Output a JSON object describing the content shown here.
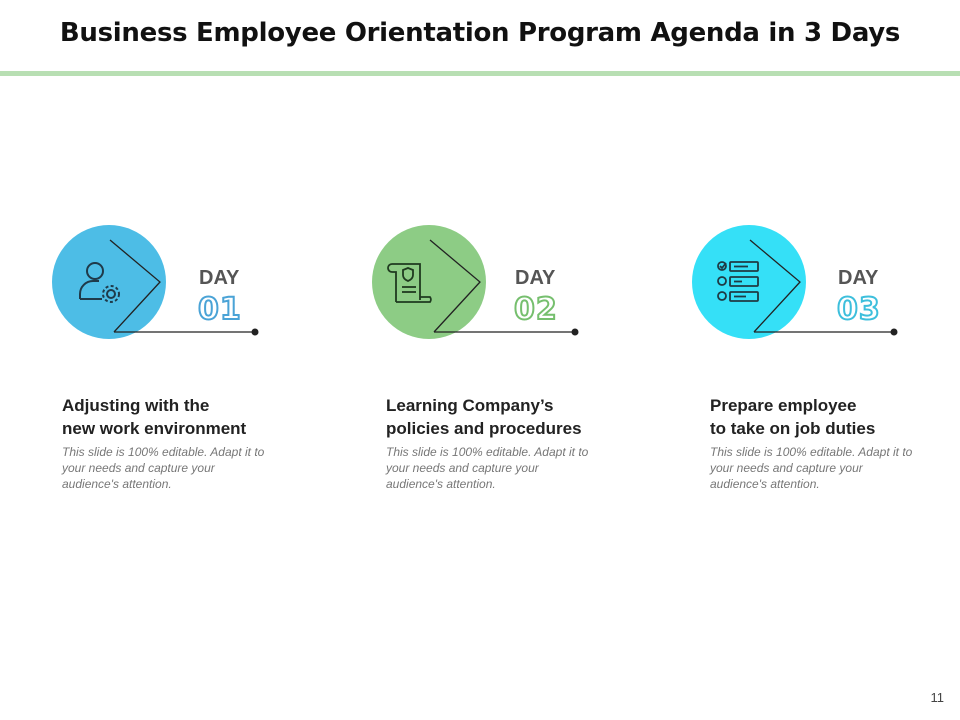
{
  "slide": {
    "title": "Business Employee Orientation Program Agenda in 3 Days",
    "page_number": "11",
    "accent_rule_color": "#b8dfb3"
  },
  "steps": [
    {
      "day_label": "DAY",
      "day_number": "01",
      "heading_line1": "Adjusting with the",
      "heading_line2": "new work environment",
      "description": "This slide is 100% editable. Adapt it to your needs and capture your audience's attention.",
      "circle_color": "#4dbde6",
      "number_color": "#4aa3d6",
      "icon": "user-gear-icon"
    },
    {
      "day_label": "DAY",
      "day_number": "02",
      "heading_line1": "Learning Company’s",
      "heading_line2": "policies and procedures",
      "description": "This slide is 100% editable. Adapt it to your needs and capture your audience's attention.",
      "circle_color": "#8dcc85",
      "number_color": "#76bf6e",
      "icon": "policy-scroll-icon"
    },
    {
      "day_label": "DAY",
      "day_number": "03",
      "heading_line1": "Prepare employee",
      "heading_line2": "to take on job duties",
      "description": "This slide is 100% editable. Adapt it to your needs and capture your audience's attention.",
      "circle_color": "#35e0f7",
      "number_color": "#3dbfdc",
      "icon": "checklist-icon"
    }
  ]
}
